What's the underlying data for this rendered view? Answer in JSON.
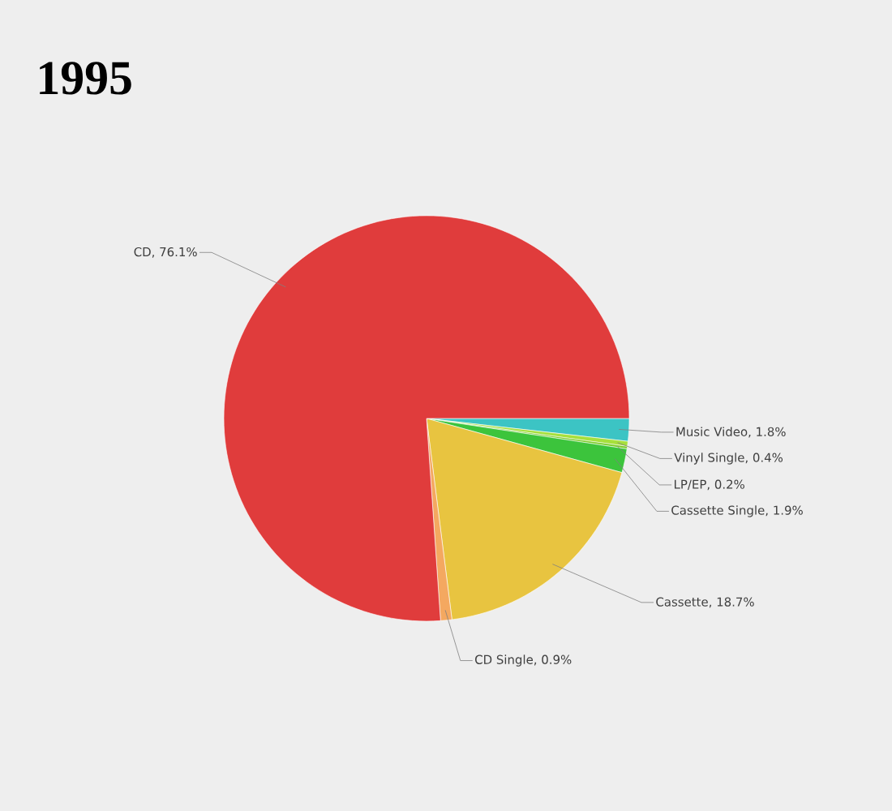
{
  "chart_data": {
    "type": "pie",
    "title": "1995",
    "categories": [
      "Music Video",
      "Vinyl Single",
      "LP/EP",
      "Cassette Single",
      "Cassette",
      "CD Single",
      "CD"
    ],
    "values": [
      1.8,
      0.4,
      0.2,
      1.9,
      18.7,
      0.9,
      76.1
    ],
    "colors": [
      "#3cc4c4",
      "#a6e03c",
      "#7ccc2a",
      "#3cc43c",
      "#e8c440",
      "#f4a860",
      "#e03c3c"
    ],
    "value_labels": [
      ", 1.8%",
      ", 0.4%",
      ", 0.2%",
      ", 1.9%",
      ", 18.7%",
      ", 0.9%",
      ", 76.1%"
    ]
  }
}
